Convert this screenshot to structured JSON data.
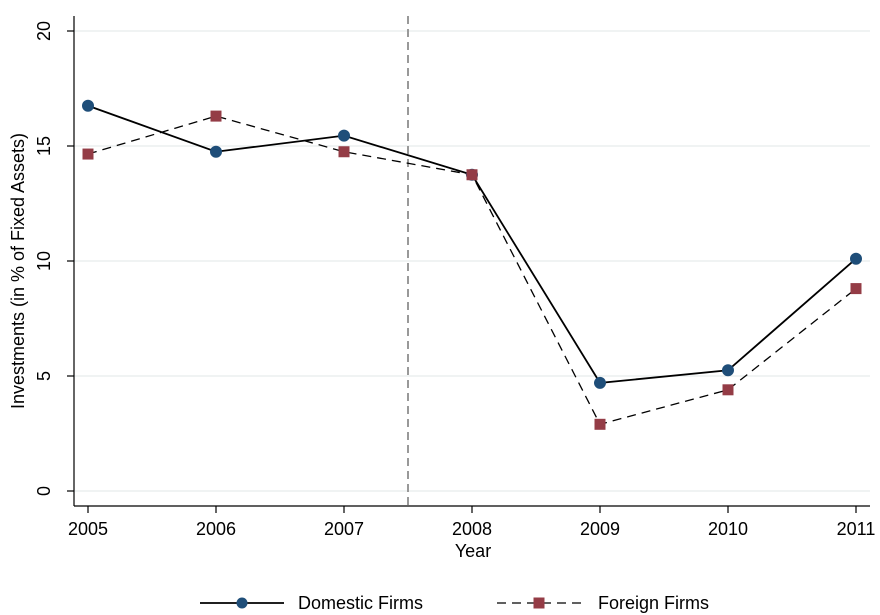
{
  "chart_data": {
    "type": "line",
    "title": "",
    "xlabel": "Year",
    "ylabel": "Investments (in % of Fixed Assets)",
    "x": [
      2005,
      2006,
      2007,
      2008,
      2009,
      2010,
      2011
    ],
    "x_tick_labels": [
      "2005",
      "2006",
      "2007",
      "2008",
      "2009",
      "2010",
      "2011"
    ],
    "ylim": [
      0,
      20
    ],
    "y_ticks": [
      0,
      5,
      10,
      15,
      20
    ],
    "y_tick_labels": [
      "0",
      "5",
      "10",
      "15",
      "20"
    ],
    "grid": true,
    "legend_placement": "bottom",
    "reference_line": {
      "x": 2007.5,
      "style": "dashed",
      "color": "#999999"
    },
    "series": [
      {
        "name": "Domestic Firms",
        "values": [
          16.75,
          14.75,
          15.45,
          13.75,
          4.7,
          5.25,
          10.1
        ],
        "color": "#1f4e79",
        "line_style": "solid",
        "marker": "circle"
      },
      {
        "name": "Foreign Firms",
        "values": [
          14.65,
          16.3,
          14.75,
          13.75,
          2.9,
          4.4,
          8.8
        ],
        "color": "#943c46",
        "line_style": "dashed",
        "marker": "square"
      }
    ]
  }
}
